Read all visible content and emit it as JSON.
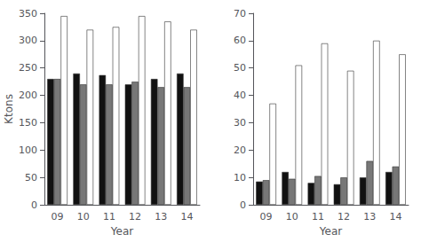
{
  "chart_data": [
    {
      "type": "bar",
      "categories": [
        "09",
        "10",
        "11",
        "12",
        "13",
        "14"
      ],
      "xlabel": "Year",
      "ylabel": "Ktons",
      "ylim": [
        0,
        350
      ],
      "yticks": [
        0,
        50,
        100,
        150,
        200,
        250,
        300,
        350
      ],
      "grid": false,
      "series": [
        {
          "color": "#111111",
          "values": [
            230,
            240,
            237,
            220,
            230,
            240
          ]
        },
        {
          "color": "#777777",
          "values": [
            230,
            220,
            220,
            225,
            215,
            215
          ]
        },
        {
          "color": "#ffffff",
          "values": [
            345,
            320,
            325,
            345,
            335,
            320
          ]
        }
      ]
    },
    {
      "type": "bar",
      "categories": [
        "09",
        "10",
        "11",
        "12",
        "13",
        "14"
      ],
      "xlabel": "Year",
      "ylim": [
        0,
        70
      ],
      "yticks": [
        0,
        10,
        20,
        30,
        40,
        50,
        60,
        70
      ],
      "grid": false,
      "series": [
        {
          "color": "#111111",
          "values": [
            8.5,
            12,
            8,
            7.5,
            10,
            12
          ]
        },
        {
          "color": "#777777",
          "values": [
            9,
            9.5,
            10.5,
            10,
            16,
            14
          ]
        },
        {
          "color": "#ffffff",
          "values": [
            37,
            51,
            59,
            49,
            60,
            55
          ]
        }
      ]
    }
  ]
}
